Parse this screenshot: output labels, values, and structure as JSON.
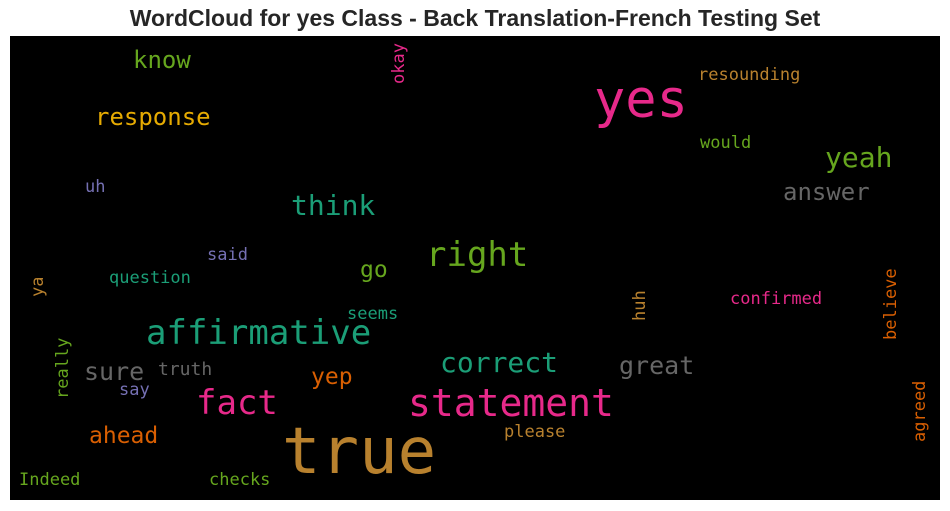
{
  "chart_data": {
    "type": "wordcloud",
    "title": "WordCloud for yes Class - Back Translation-French Testing Set",
    "background": "#000000",
    "words": [
      {
        "text": "true",
        "color": "#b8812e"
      },
      {
        "text": "yes",
        "color": "#e7298a"
      },
      {
        "text": "statement",
        "color": "#e7298a"
      },
      {
        "text": "affirmative",
        "color": "#1b9e77"
      },
      {
        "text": "right",
        "color": "#66a61e"
      },
      {
        "text": "fact",
        "color": "#e7298a"
      },
      {
        "text": "correct",
        "color": "#1b9e77"
      },
      {
        "text": "think",
        "color": "#1b9e77"
      },
      {
        "text": "yeah",
        "color": "#66a61e"
      },
      {
        "text": "response",
        "color": "#e6ab02"
      },
      {
        "text": "great",
        "color": "#666666"
      },
      {
        "text": "sure",
        "color": "#666666"
      },
      {
        "text": "know",
        "color": "#66a61e"
      },
      {
        "text": "ahead",
        "color": "#d95f02"
      },
      {
        "text": "answer",
        "color": "#666666"
      },
      {
        "text": "yep",
        "color": "#d95f02"
      },
      {
        "text": "go",
        "color": "#66a61e"
      },
      {
        "text": "resounding",
        "color": "#b8812e"
      },
      {
        "text": "confirmed",
        "color": "#e7298a"
      },
      {
        "text": "question",
        "color": "#1b9e77"
      },
      {
        "text": "truth",
        "color": "#666666"
      },
      {
        "text": "please",
        "color": "#b8812e"
      },
      {
        "text": "checks",
        "color": "#66a61e"
      },
      {
        "text": "Indeed",
        "color": "#66a61e"
      },
      {
        "text": "said",
        "color": "#7570b3"
      },
      {
        "text": "would",
        "color": "#66a61e"
      },
      {
        "text": "seems",
        "color": "#1b9e77"
      },
      {
        "text": "say",
        "color": "#7570b3"
      },
      {
        "text": "uh",
        "color": "#7570b3"
      },
      {
        "text": "believe",
        "color": "#d95f02"
      },
      {
        "text": "agreed",
        "color": "#d95f02"
      },
      {
        "text": "okay",
        "color": "#e7298a"
      },
      {
        "text": "really",
        "color": "#66a61e"
      },
      {
        "text": "huh",
        "color": "#b8812e"
      },
      {
        "text": "ya",
        "color": "#b8812e"
      }
    ]
  }
}
